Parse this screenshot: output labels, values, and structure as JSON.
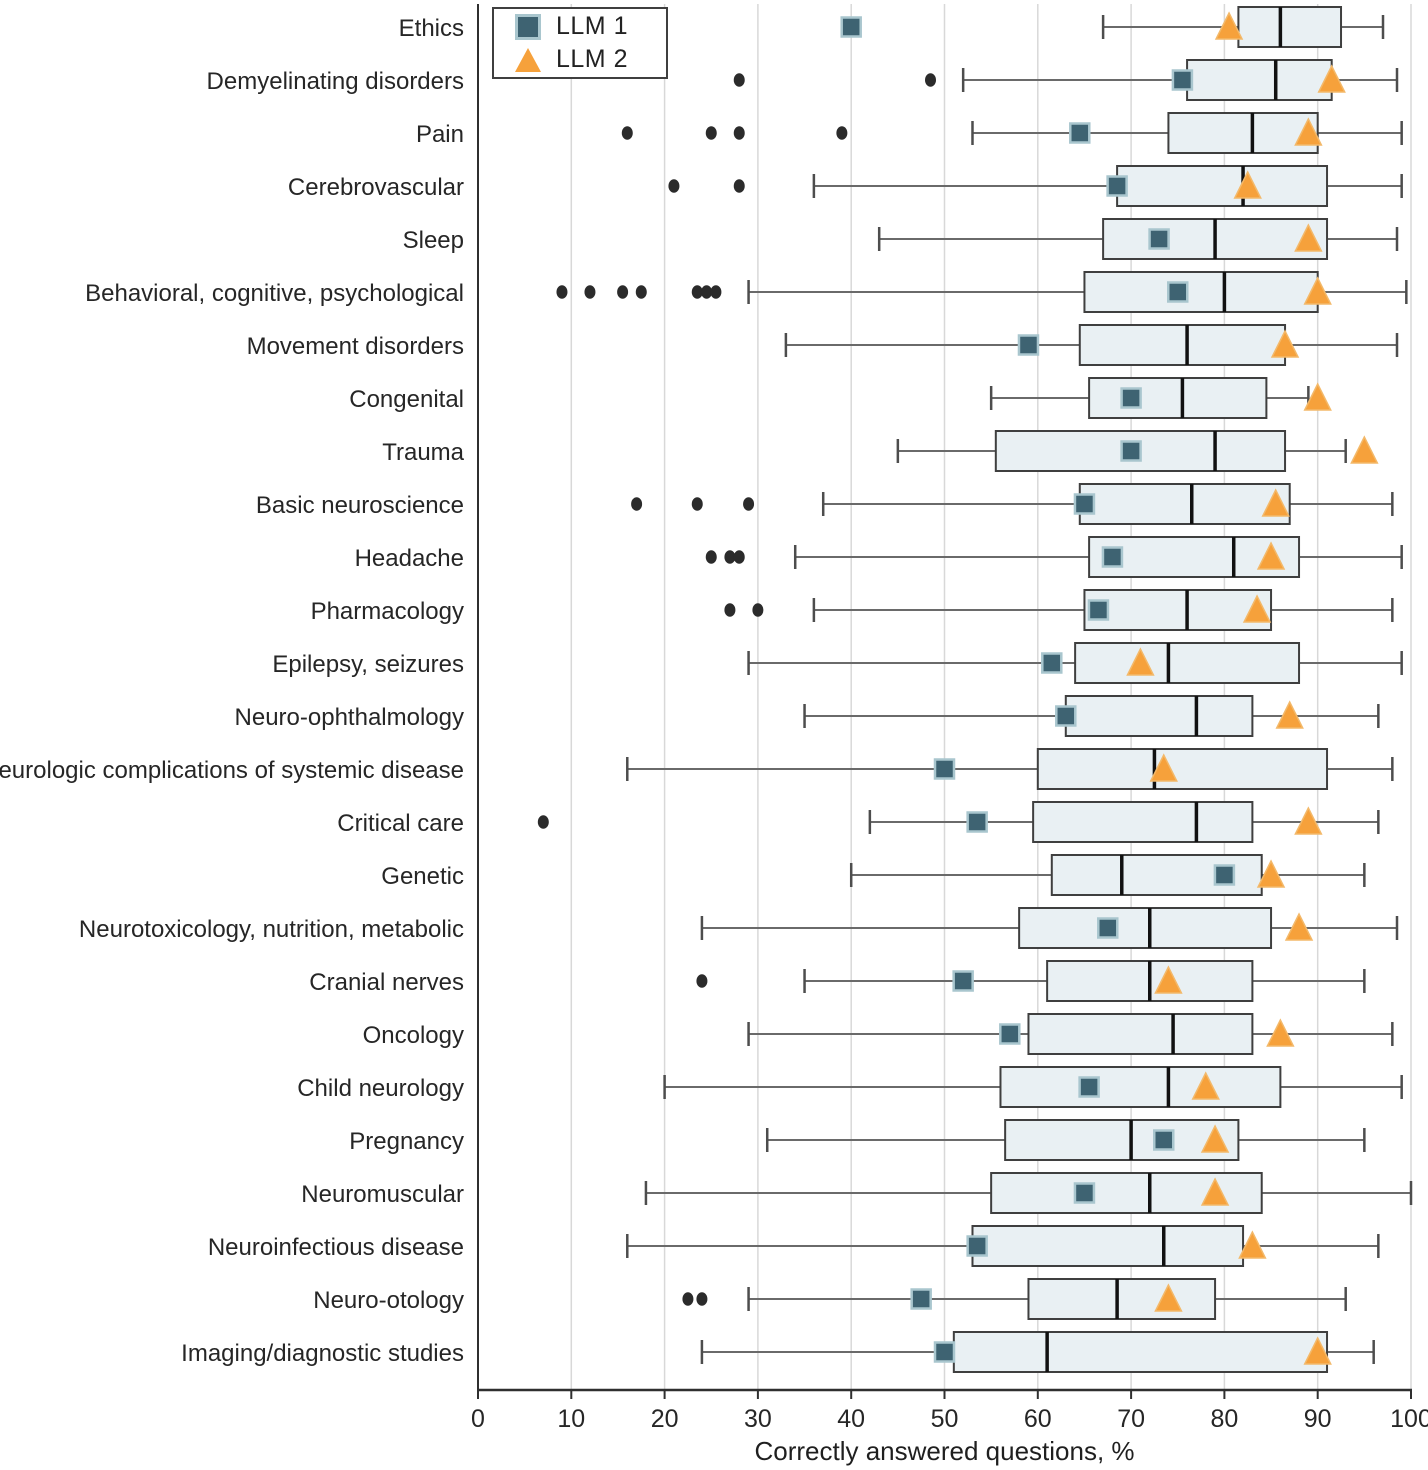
{
  "chart_data": {
    "type": "box",
    "orientation": "horizontal",
    "title": "",
    "xlabel": "Correctly answered questions, %",
    "ylabel": "",
    "xlim": [
      0,
      100
    ],
    "x_ticks": [
      0,
      10,
      20,
      30,
      40,
      50,
      60,
      70,
      80,
      90,
      100
    ],
    "grid": "vertical-gridlines-10-to-100",
    "legend_position": "top-left-inside",
    "legend": [
      {
        "label": "LLM 1",
        "marker": "square",
        "color": "#3E6372"
      },
      {
        "label": "LLM 2",
        "marker": "triangle",
        "color": "#F6A13B"
      }
    ],
    "rows": [
      {
        "category": "Ethics",
        "outliers": [],
        "whisker_low": 67,
        "q1": 81.5,
        "median": 86,
        "q3": 92.5,
        "whisker_high": 97,
        "llm1": 40,
        "llm2": 80.5
      },
      {
        "category": "Demyelinating disorders",
        "outliers": [
          28,
          48.5
        ],
        "whisker_low": 52,
        "q1": 76,
        "median": 85.5,
        "q3": 91.5,
        "whisker_high": 98.5,
        "llm1": 75.5,
        "llm2": 91.5
      },
      {
        "category": "Pain",
        "outliers": [
          16,
          25,
          28,
          39
        ],
        "whisker_low": 53,
        "q1": 74,
        "median": 83,
        "q3": 90,
        "whisker_high": 99,
        "llm1": 64.5,
        "llm2": 89
      },
      {
        "category": "Cerebrovascular",
        "outliers": [
          21,
          28
        ],
        "whisker_low": 36,
        "q1": 68.5,
        "median": 82,
        "q3": 91,
        "whisker_high": 99,
        "llm1": 68.5,
        "llm2": 82.5
      },
      {
        "category": "Sleep",
        "outliers": [],
        "whisker_low": 43,
        "q1": 67,
        "median": 79,
        "q3": 91,
        "whisker_high": 98.5,
        "llm1": 73,
        "llm2": 89
      },
      {
        "category": "Behavioral, cognitive, psychological",
        "outliers": [
          9,
          12,
          15.5,
          17.5,
          23.5,
          24.5,
          25.5
        ],
        "whisker_low": 29,
        "q1": 65,
        "median": 80,
        "q3": 90,
        "whisker_high": 99.5,
        "llm1": 75,
        "llm2": 90
      },
      {
        "category": "Movement disorders",
        "outliers": [],
        "whisker_low": 33,
        "q1": 64.5,
        "median": 76,
        "q3": 86.5,
        "whisker_high": 98.5,
        "llm1": 59,
        "llm2": 86.5
      },
      {
        "category": "Congenital",
        "outliers": [],
        "whisker_low": 55,
        "q1": 65.5,
        "median": 75.5,
        "q3": 84.5,
        "whisker_high": 89,
        "llm1": 70,
        "llm2": 90
      },
      {
        "category": "Trauma",
        "outliers": [],
        "whisker_low": 45,
        "q1": 55.5,
        "median": 79,
        "q3": 86.5,
        "whisker_high": 93,
        "llm1": 70,
        "llm2": 95
      },
      {
        "category": "Basic neuroscience",
        "outliers": [
          17,
          23.5,
          29
        ],
        "whisker_low": 37,
        "q1": 64.5,
        "median": 76.5,
        "q3": 87,
        "whisker_high": 98,
        "llm1": 65,
        "llm2": 85.5
      },
      {
        "category": "Headache",
        "outliers": [
          25,
          27,
          28
        ],
        "whisker_low": 34,
        "q1": 65.5,
        "median": 81,
        "q3": 88,
        "whisker_high": 99,
        "llm1": 68,
        "llm2": 85
      },
      {
        "category": "Pharmacology",
        "outliers": [
          27,
          30
        ],
        "whisker_low": 36,
        "q1": 65,
        "median": 76,
        "q3": 85,
        "whisker_high": 98,
        "llm1": 66.5,
        "llm2": 83.5
      },
      {
        "category": "Epilepsy, seizures",
        "outliers": [],
        "whisker_low": 29,
        "q1": 64,
        "median": 74,
        "q3": 88,
        "whisker_high": 99,
        "llm1": 61.5,
        "llm2": 71
      },
      {
        "category": "Neuro-ophthalmology",
        "outliers": [],
        "whisker_low": 35,
        "q1": 63,
        "median": 77,
        "q3": 83,
        "whisker_high": 96.5,
        "llm1": 63,
        "llm2": 87
      },
      {
        "category": "Neurologic complications of systemic disease",
        "outliers": [],
        "whisker_low": 16,
        "q1": 60,
        "median": 72.5,
        "q3": 91,
        "whisker_high": 98,
        "llm1": 50,
        "llm2": 73.5
      },
      {
        "category": "Critical care",
        "outliers": [
          7
        ],
        "whisker_low": 42,
        "q1": 59.5,
        "median": 77,
        "q3": 83,
        "whisker_high": 96.5,
        "llm1": 53.5,
        "llm2": 89
      },
      {
        "category": "Genetic",
        "outliers": [],
        "whisker_low": 40,
        "q1": 61.5,
        "median": 69,
        "q3": 84,
        "whisker_high": 95,
        "llm1": 80,
        "llm2": 85
      },
      {
        "category": "Neurotoxicology, nutrition, metabolic",
        "outliers": [],
        "whisker_low": 24,
        "q1": 58,
        "median": 72,
        "q3": 85,
        "whisker_high": 98.5,
        "llm1": 67.5,
        "llm2": 88
      },
      {
        "category": "Cranial nerves",
        "outliers": [
          24
        ],
        "whisker_low": 35,
        "q1": 61,
        "median": 72,
        "q3": 83,
        "whisker_high": 95,
        "llm1": 52,
        "llm2": 74
      },
      {
        "category": "Oncology",
        "outliers": [],
        "whisker_low": 29,
        "q1": 59,
        "median": 74.5,
        "q3": 83,
        "whisker_high": 98,
        "llm1": 57,
        "llm2": 86
      },
      {
        "category": "Child neurology",
        "outliers": [],
        "whisker_low": 20,
        "q1": 56,
        "median": 74,
        "q3": 86,
        "whisker_high": 99,
        "llm1": 65.5,
        "llm2": 78
      },
      {
        "category": "Pregnancy",
        "outliers": [],
        "whisker_low": 31,
        "q1": 56.5,
        "median": 70,
        "q3": 81.5,
        "whisker_high": 95,
        "llm1": 73.5,
        "llm2": 79
      },
      {
        "category": "Neuromuscular",
        "outliers": [],
        "whisker_low": 18,
        "q1": 55,
        "median": 72,
        "q3": 84,
        "whisker_high": 100,
        "llm1": 65,
        "llm2": 79
      },
      {
        "category": "Neuroinfectious disease",
        "outliers": [],
        "whisker_low": 16,
        "q1": 53,
        "median": 73.5,
        "q3": 82,
        "whisker_high": 96.5,
        "llm1": 53.5,
        "llm2": 83
      },
      {
        "category": "Neuro-otology",
        "outliers": [
          22.5,
          24
        ],
        "whisker_low": 29,
        "q1": 59,
        "median": 68.5,
        "q3": 79,
        "whisker_high": 93,
        "llm1": 47.5,
        "llm2": 74
      },
      {
        "category": "Imaging/diagnostic studies",
        "outliers": [],
        "whisker_low": 24,
        "q1": 51,
        "median": 61,
        "q3": 91,
        "whisker_high": 96,
        "llm1": 50,
        "llm2": 90
      }
    ]
  },
  "colors": {
    "box_fill": "#E9F0F3",
    "box_stroke": "#3F3F3F",
    "median": "#111111",
    "whisker": "#6A6A6A",
    "whisker_cap": "#4D4D4D",
    "outlier": "#2B2B2B",
    "grid": "#D8D8D8",
    "axis": "#2F2F2F",
    "text": "#262626",
    "llm1_fill": "#3E6372",
    "llm1_stroke": "#A9C6CE",
    "llm2_fill": "#F6A13B",
    "llm2_stroke": "#F3B96A"
  }
}
